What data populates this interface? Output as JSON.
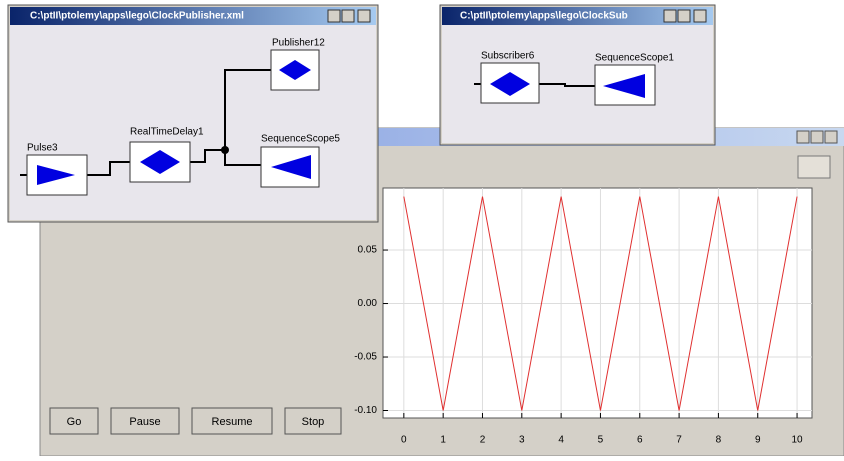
{
  "windows": {
    "publisher": {
      "title": "C:\\ptII\\ptolemy\\apps\\lego\\ClockPublisher.xml",
      "actors": [
        "Pulse3",
        "RealTimeDelay1",
        "Publisher12",
        "SequenceScope5"
      ]
    },
    "subscriber": {
      "title": "C:\\ptII\\ptolemy\\apps\\lego\\ClockSub",
      "actors": [
        "Subscriber6",
        "SequenceScope1"
      ]
    },
    "run": {
      "buttons": [
        "Go",
        "Pause",
        "Resume",
        "Stop"
      ]
    }
  },
  "chart_data": {
    "type": "line",
    "x": [
      0,
      1,
      2,
      3,
      4,
      5,
      6,
      7,
      8,
      9,
      10
    ],
    "series": [
      {
        "color": "#e03030",
        "values": [
          0.1,
          -0.1,
          0.1,
          -0.1,
          0.1,
          -0.1,
          0.1,
          -0.1,
          0.1,
          -0.1,
          0.1
        ]
      }
    ],
    "xlim": [
      -0.53,
      10.38
    ],
    "ylim": [
      -0.107,
      0.108
    ],
    "xticks": [
      0,
      1,
      2,
      3,
      4,
      5,
      6,
      7,
      8,
      9,
      10
    ],
    "yticks": [
      {
        "value": -0.1,
        "label": "-0.10"
      },
      -0.05,
      {
        "value": 0,
        "label": "0.00"
      },
      0.05
    ],
    "grid": true
  }
}
